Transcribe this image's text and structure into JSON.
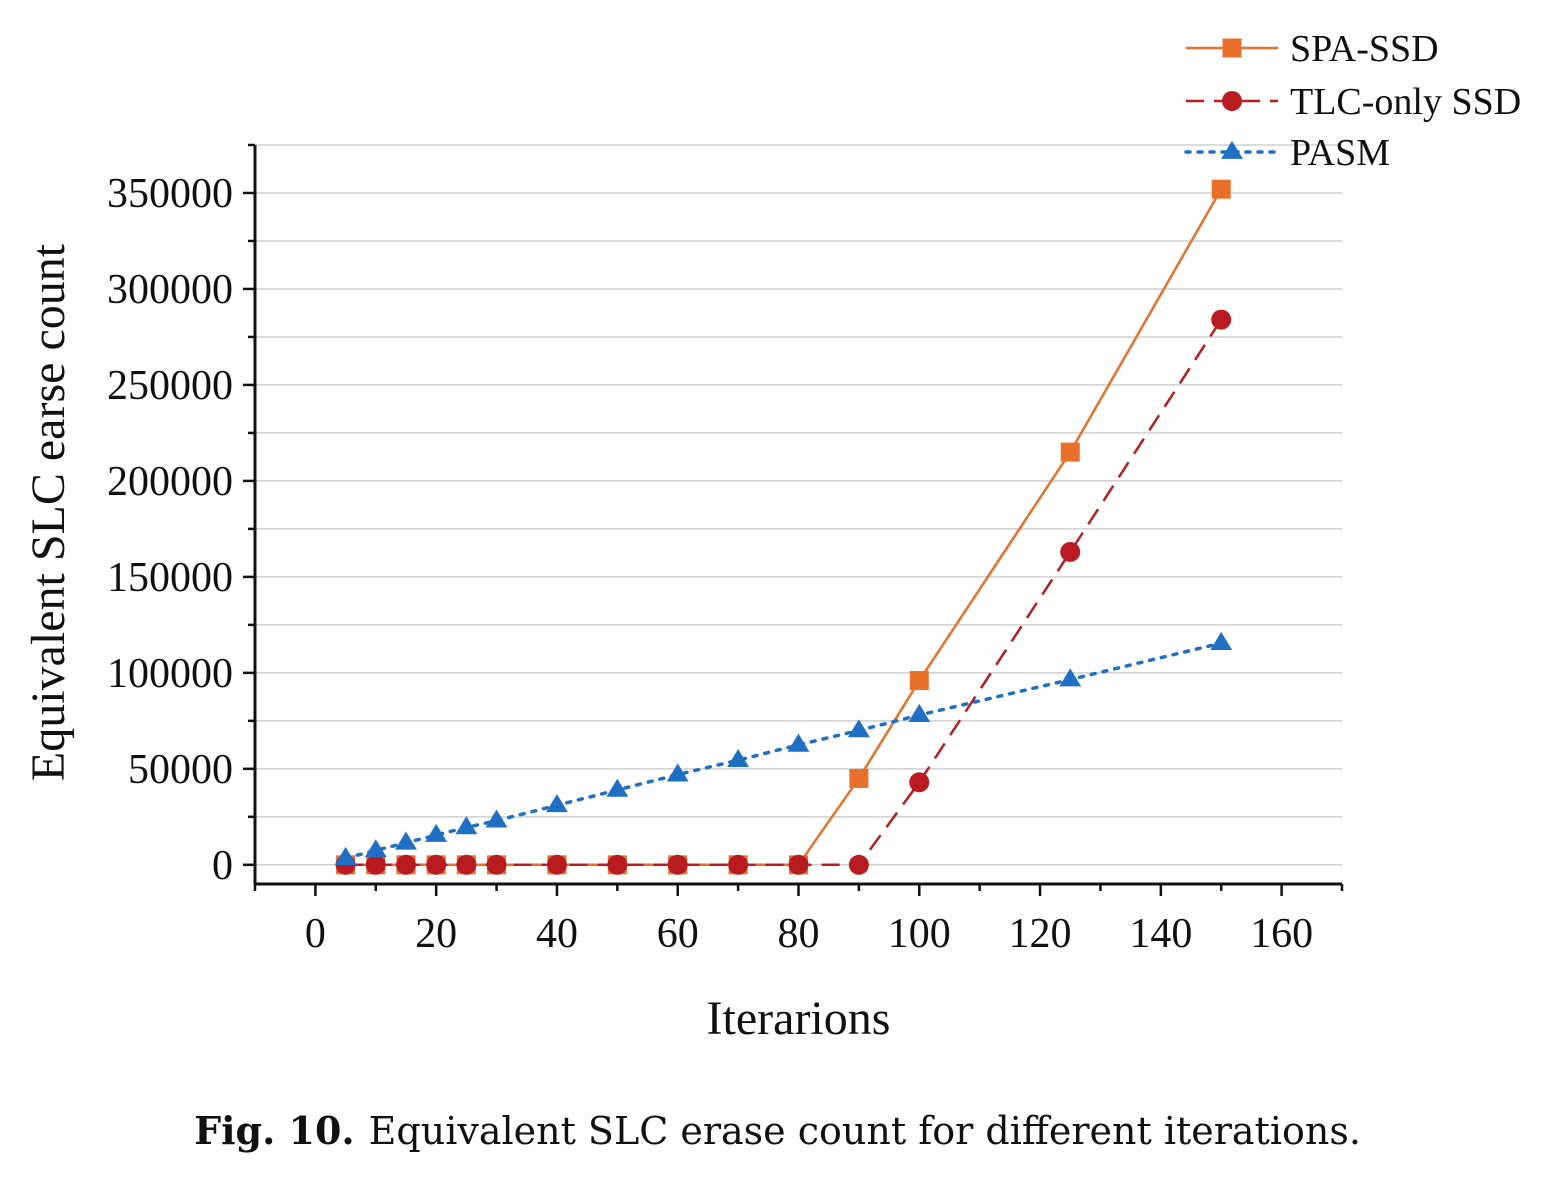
{
  "chart_data": {
    "type": "line",
    "xlabel": "Iterarions",
    "ylabel": "Equivalent SLC earse count",
    "xlim": [
      -10,
      170
    ],
    "ylim": [
      -10000,
      375000
    ],
    "xticks": [
      0,
      20,
      40,
      60,
      80,
      100,
      120,
      140,
      160
    ],
    "yticks": [
      0,
      50000,
      100000,
      150000,
      200000,
      250000,
      300000,
      350000
    ],
    "grid": "horizontal",
    "legend_position": "top-right",
    "series": [
      {
        "name": "SPA-SSD",
        "color": "#e8702a",
        "marker": "square",
        "line_style": "solid",
        "x": [
          5,
          10,
          15,
          20,
          25,
          30,
          40,
          50,
          60,
          70,
          80,
          90,
          100,
          125,
          150
        ],
        "y": [
          0,
          0,
          0,
          0,
          0,
          0,
          0,
          0,
          0,
          0,
          0,
          45000,
          96000,
          215000,
          352000
        ]
      },
      {
        "name": "TLC-only SSD",
        "color": "#b81c20",
        "marker": "circle",
        "line_style": "dashed",
        "x": [
          5,
          10,
          15,
          20,
          25,
          30,
          40,
          50,
          60,
          70,
          80,
          90,
          100,
          125,
          150
        ],
        "y": [
          0,
          0,
          0,
          0,
          0,
          0,
          0,
          0,
          0,
          0,
          0,
          0,
          43000,
          163000,
          284000
        ]
      },
      {
        "name": "PASM",
        "color": "#1f6fc4",
        "marker": "triangle",
        "line_style": "dotted",
        "x": [
          5,
          10,
          15,
          20,
          25,
          30,
          40,
          50,
          60,
          70,
          80,
          90,
          100,
          125,
          150
        ],
        "y": [
          3500,
          7500,
          11500,
          15500,
          19500,
          23000,
          31000,
          39000,
          47000,
          54500,
          62500,
          70000,
          78000,
          96500,
          115500
        ]
      }
    ]
  },
  "caption": {
    "label": "Fig. 10.",
    "text": "Equivalent SLC erase count for different iterations."
  }
}
